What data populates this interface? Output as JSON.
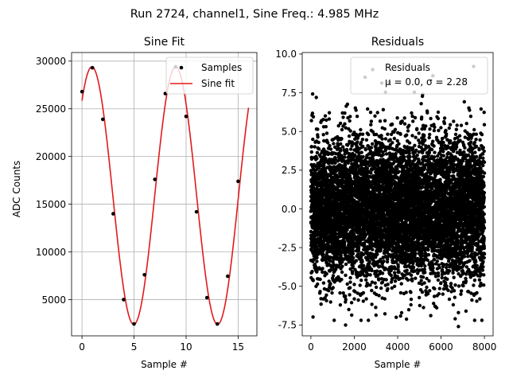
{
  "figure": {
    "suptitle": "Run 2724, channel1, Sine Freq.: 4.985 MHz"
  },
  "chart_data": [
    {
      "type": "line",
      "title": "Sine Fit",
      "xlabel": "Sample #",
      "ylabel": "ADC Counts",
      "xlim": [
        -1,
        16.8
      ],
      "ylim": [
        1200,
        30900
      ],
      "xticks": [
        0,
        5,
        10,
        15
      ],
      "yticks": [
        5000,
        10000,
        15000,
        20000,
        25000,
        30000
      ],
      "grid": true,
      "legend_position": "top-right",
      "legend": [
        "Samples",
        "Sine fit"
      ],
      "series": [
        {
          "name": "Samples",
          "kind": "scatter",
          "color": "#000000",
          "x": [
            0,
            1,
            2,
            3,
            4,
            5,
            6,
            7,
            8,
            9,
            10,
            11,
            12,
            13,
            14,
            15
          ],
          "y": [
            26800,
            29300,
            23900,
            14000,
            5000,
            2450,
            7600,
            17600,
            26600,
            29400,
            24200,
            14200,
            5200,
            2450,
            7450,
            17400
          ]
        },
        {
          "name": "Sine fit",
          "kind": "line",
          "color": "#e31a1c",
          "model": {
            "amplitude": 13500,
            "offset": 15900,
            "period": 8.05,
            "peak_at": 0.95,
            "x_range": [
              0,
              16
            ]
          }
        }
      ]
    },
    {
      "type": "scatter",
      "title": "Residuals",
      "xlabel": "Sample #",
      "ylabel": "",
      "xlim": [
        -400,
        8400
      ],
      "ylim": [
        -8.2,
        10.1
      ],
      "xticks": [
        0,
        2000,
        4000,
        6000,
        8000
      ],
      "yticks": [
        -7.5,
        -5.0,
        -2.5,
        0.0,
        2.5,
        5.0,
        7.5,
        10.0
      ],
      "grid": false,
      "legend_position": "top-right",
      "legend": [
        "Residuals",
        "μ = 0.0, σ = 2.28"
      ],
      "series": [
        {
          "name": "Residuals",
          "color": "#000000",
          "count": 8000,
          "mean": 0.0,
          "sigma": 2.28,
          "x_range": [
            0,
            8000
          ],
          "outliers": [
            {
              "x": 1600,
              "y": -7.5
            },
            {
              "x": 6800,
              "y": -7.6
            },
            {
              "x": 6650,
              "y": -7.1
            },
            {
              "x": 7500,
              "y": 9.2
            },
            {
              "x": 2850,
              "y": 9.0
            },
            {
              "x": 2500,
              "y": 8.5
            },
            {
              "x": 250,
              "y": 7.2
            },
            {
              "x": 5150,
              "y": 7.4
            },
            {
              "x": 1750,
              "y": -6.5
            },
            {
              "x": 7150,
              "y": -6.6
            }
          ]
        }
      ]
    }
  ]
}
